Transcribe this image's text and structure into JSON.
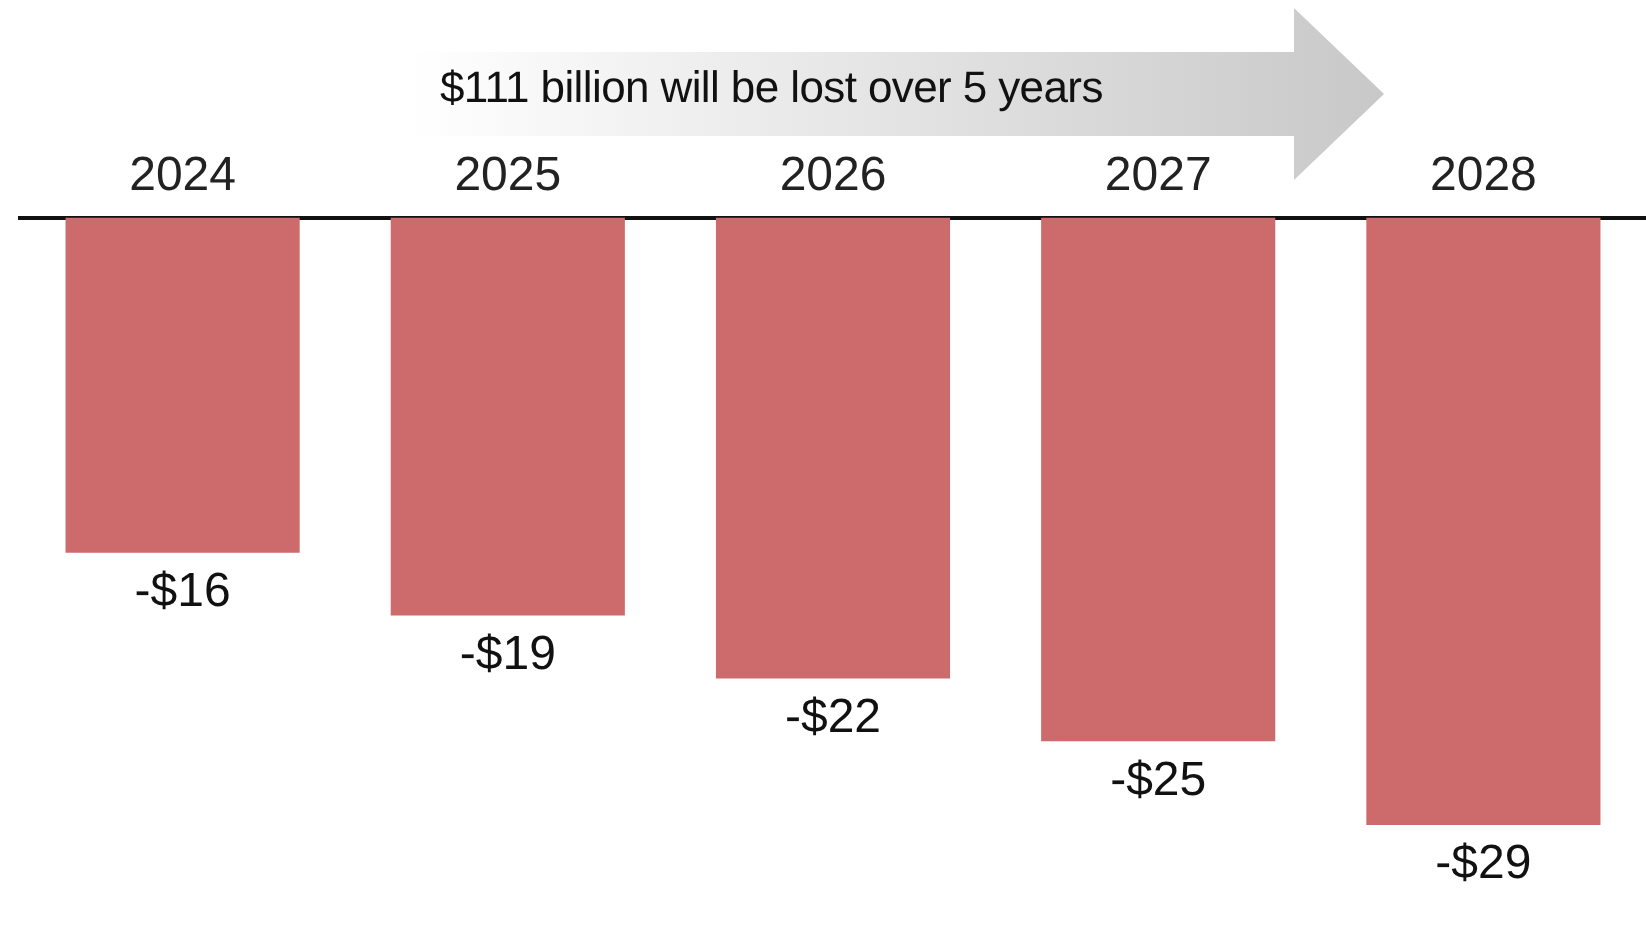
{
  "chart_data": {
    "type": "bar",
    "categories": [
      "2024",
      "2025",
      "2026",
      "2027",
      "2028"
    ],
    "values": [
      -16,
      -19,
      -22,
      -25,
      -29
    ],
    "color": "#cd6a6c",
    "value_labels": [
      "-$16",
      "-$19",
      "-$22",
      "-$25",
      "-$29"
    ],
    "annotations": [
      "$111 billion will be lost over 5 years"
    ],
    "grid": false,
    "legend": false,
    "tick_labels": "x"
  }
}
